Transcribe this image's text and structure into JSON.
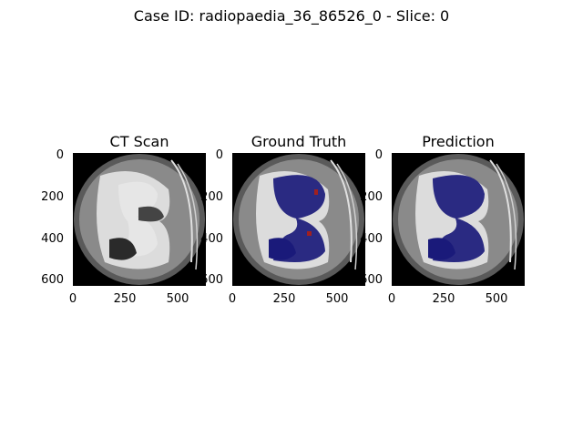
{
  "figure": {
    "suptitle": "Case ID: radiopaedia_36_86526_0 - Slice: 0",
    "panels": [
      {
        "title": "CT Scan",
        "mask": "none"
      },
      {
        "title": "Ground Truth",
        "mask": "ground_truth"
      },
      {
        "title": "Prediction",
        "mask": "prediction"
      }
    ],
    "axes": {
      "y_ticks": [
        "0",
        "200",
        "400",
        "600"
      ],
      "x_ticks": [
        "0",
        "250",
        "500"
      ],
      "range": [
        0,
        630
      ]
    },
    "colors": {
      "background": "#000000",
      "mask_lung": "#1a1a7a",
      "mask_lesion": "#a02020"
    }
  }
}
